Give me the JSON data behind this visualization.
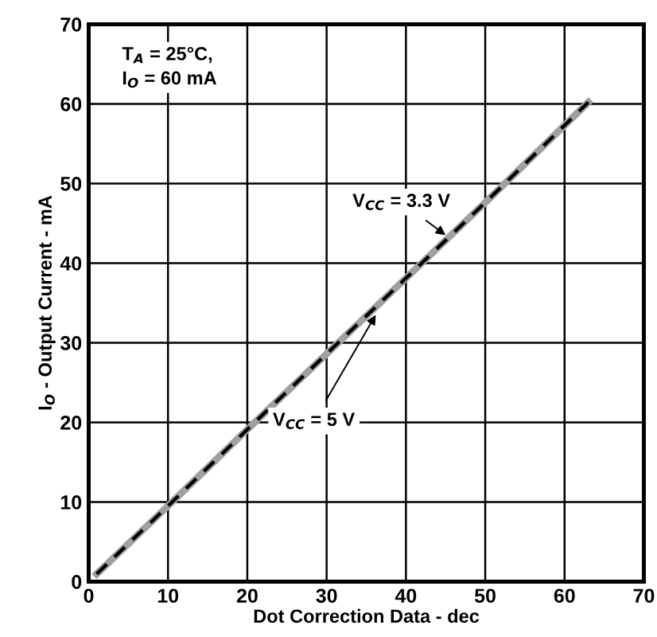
{
  "chart_data": {
    "type": "line",
    "x": [
      1,
      10,
      20,
      30,
      40,
      50,
      63
    ],
    "series": [
      {
        "color": "#a0a0a0",
        "line_style": "solid",
        "values": [
          0.95,
          9.5,
          19.1,
          28.6,
          38.1,
          47.6,
          60.2
        ]
      },
      {
        "color": "#000000",
        "line_style": "dashed",
        "values": [
          0.95,
          9.5,
          19.1,
          28.6,
          38.1,
          47.6,
          60.2
        ]
      }
    ],
    "xlabel": "Dot Correction Data - dec",
    "ylabel": "I$_{O}$ - Output Current - mA",
    "xlim": [
      0,
      70
    ],
    "ylim": [
      0,
      70
    ],
    "xticks": [
      0,
      10,
      20,
      30,
      40,
      50,
      60,
      70
    ],
    "yticks": [
      0,
      10,
      20,
      30,
      40,
      50,
      60,
      70
    ],
    "grid": true,
    "legend": false,
    "marker": "none",
    "annotations": [
      "T$_{A}$ = 25°C,\nI$_{O}$ = 60 mA",
      {
        "text": "V$_{CC}$ = 3.3 V",
        "x": 45,
        "y": 43.5
      },
      {
        "text": "V$_{CC}$ = 5 V",
        "x": 36.2,
        "y": 33.5
      }
    ]
  }
}
